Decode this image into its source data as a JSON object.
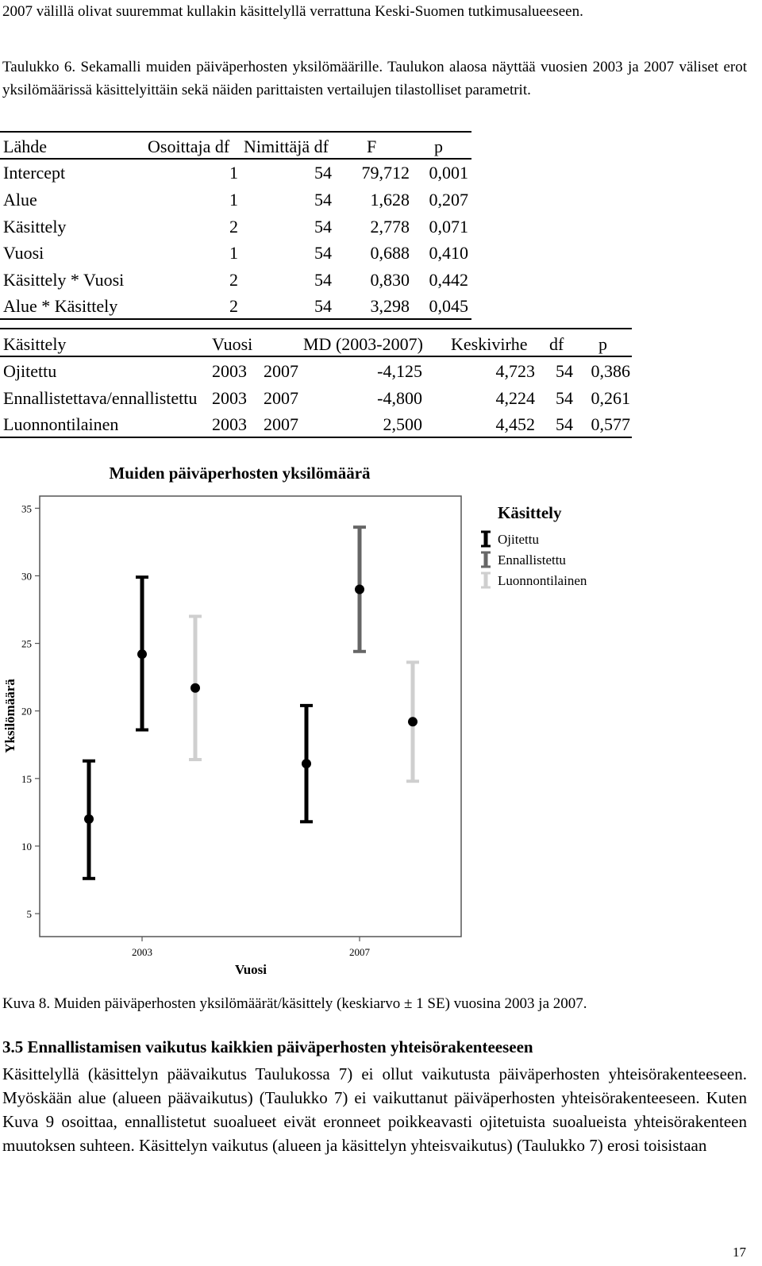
{
  "intro": {
    "text": "2007 välillä olivat suuremmat kullakin käsittelyllä verrattuna Keski-Suomen tutkimusalueeseen."
  },
  "table_caption": "Taulukko 6. Sekamalli muiden päiväperhosten yksilömäärille. Taulukon alaosa näyttää vuosien 2003 ja 2007 väliset erot yksilömäärissä käsittelyittäin sekä näiden parittaisten vertailujen tilastolliset parametrit.",
  "table_top": {
    "headers": [
      "Lähde",
      "Osoittaja df",
      "Nimittäjä df",
      "F",
      "p"
    ],
    "rows": [
      [
        "Intercept",
        "1",
        "54",
        "79,712",
        "0,001"
      ],
      [
        "Alue",
        "1",
        "54",
        "1,628",
        "0,207"
      ],
      [
        "Käsittely",
        "2",
        "54",
        "2,778",
        "0,071"
      ],
      [
        "Vuosi",
        "1",
        "54",
        "0,688",
        "0,410"
      ],
      [
        "Käsittely * Vuosi",
        "2",
        "54",
        "0,830",
        "0,442"
      ],
      [
        "Alue * Käsittely",
        "2",
        "54",
        "3,298",
        "0,045"
      ]
    ]
  },
  "table_bottom": {
    "headers": [
      "Käsittely",
      "Vuosi",
      "MD (2003-2007)",
      "Keskivirhe",
      "df",
      "p"
    ],
    "rows": [
      [
        "Ojitettu",
        "2003",
        "2007",
        "-4,125",
        "4,723",
        "54",
        "0,386"
      ],
      [
        "Ennallistettava/ennallistettu",
        "2003",
        "2007",
        "-4,800",
        "4,224",
        "54",
        "0,261"
      ],
      [
        "Luonnontilainen",
        "2003",
        "2007",
        "2,500",
        "4,452",
        "54",
        "0,577"
      ]
    ]
  },
  "chart_data": {
    "type": "scatter",
    "title": "Muiden päiväperhosten yksilömäärä",
    "xlabel": "Vuosi",
    "ylabel": "Yksilömäärä",
    "categories": [
      "2003",
      "2007"
    ],
    "ylim": [
      3.3,
      35.9
    ],
    "yticks": [
      5,
      10,
      15,
      20,
      25,
      30,
      35
    ],
    "legend_title": "Käsittely",
    "legend_position": "top-right",
    "series": [
      {
        "name": "Ojitettu",
        "color": "#000000",
        "mean": [
          12.0,
          16.1
        ],
        "low": [
          7.6,
          11.8
        ],
        "high": [
          16.3,
          20.4
        ]
      },
      {
        "name": "Ennallistettu",
        "color": "#666666",
        "mean": [
          null,
          29.0
        ],
        "low": [
          null,
          24.4
        ],
        "high": [
          null,
          33.6
        ]
      },
      {
        "name": "Luonnontilainen",
        "color": "#cfcfcf",
        "mean": [
          21.7,
          19.2
        ],
        "low": [
          16.4,
          14.8
        ],
        "high": [
          27.0,
          23.6
        ]
      }
    ],
    "points": [
      {
        "series": 0,
        "cat": 0,
        "offset": -1
      },
      {
        "series": 0,
        "cat": 1,
        "offset": -1
      },
      {
        "series": 1,
        "cat": 1,
        "offset": 0
      },
      {
        "series": 2,
        "cat": 0,
        "offset": 1
      },
      {
        "series": 2,
        "cat": 1,
        "offset": 1
      },
      {
        "series": 0,
        "cat": 0,
        "offset": 0,
        "mean": 24.2,
        "low": 18.6,
        "high": 29.9,
        "label": "extra"
      }
    ]
  },
  "figure_caption": "Kuva 8. Muiden päiväperhosten yksilömäärät/käsittely (keskiarvo ± 1 SE) vuosina 2003 ja 2007.",
  "section": {
    "heading": "3.5 Ennallistamisen vaikutus kaikkien päiväperhosten yhteisörakenteeseen",
    "body": "Käsittelyllä (käsittelyn päävaikutus Taulukossa 7) ei ollut vaikutusta päiväperhosten yhteisörakenteeseen. Myöskään alue (alueen päävaikutus) (Taulukko 7) ei vaikuttanut päiväperhosten yhteisörakenteeseen. Kuten Kuva 9 osoittaa, ennallistetut suoalueet eivät eronneet poikkeavasti ojitetuista suoalueista yhteisörakenteen muutoksen suhteen. Käsittelyn vaikutus (alueen ja käsittelyn yhteisvaikutus) (Taulukko 7) erosi toisistaan"
  },
  "page_number": "17"
}
